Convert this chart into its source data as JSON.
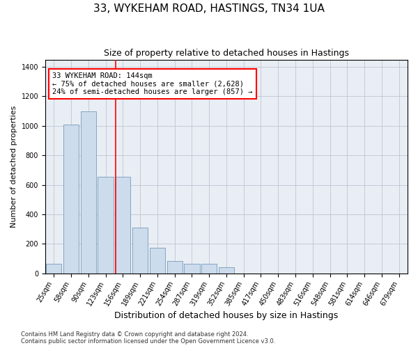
{
  "title_line1": "33, WYKEHAM ROAD, HASTINGS, TN34 1UA",
  "title_line2": "Size of property relative to detached houses in Hastings",
  "xlabel": "Distribution of detached houses by size in Hastings",
  "ylabel": "Number of detached properties",
  "bin_labels": [
    "25sqm",
    "58sqm",
    "90sqm",
    "123sqm",
    "156sqm",
    "189sqm",
    "221sqm",
    "254sqm",
    "287sqm",
    "319sqm",
    "352sqm",
    "385sqm",
    "417sqm",
    "450sqm",
    "483sqm",
    "516sqm",
    "548sqm",
    "581sqm",
    "614sqm",
    "646sqm",
    "679sqm"
  ],
  "bar_values": [
    65,
    1010,
    1100,
    655,
    655,
    310,
    175,
    85,
    65,
    65,
    40,
    0,
    0,
    0,
    0,
    0,
    0,
    0,
    0,
    0,
    0
  ],
  "bar_color": "#ccdcec",
  "bar_edge_color": "#7799bb",
  "red_line_x": 3.57,
  "annotation_text": "33 WYKEHAM ROAD: 144sqm\n← 75% of detached houses are smaller (2,628)\n24% of semi-detached houses are larger (857) →",
  "annotation_box_color": "white",
  "annotation_box_edge_color": "red",
  "ylim": [
    0,
    1450
  ],
  "yticks": [
    0,
    200,
    400,
    600,
    800,
    1000,
    1200,
    1400
  ],
  "grid_color": "#bbbbcc",
  "background_color": "#e8eef4",
  "footnote": "Contains HM Land Registry data © Crown copyright and database right 2024.\nContains public sector information licensed under the Open Government Licence v3.0.",
  "title_fontsize": 11,
  "subtitle_fontsize": 9,
  "tick_label_fontsize": 7,
  "ylabel_fontsize": 8,
  "xlabel_fontsize": 9,
  "annotation_fontsize": 7.5,
  "footnote_fontsize": 6
}
